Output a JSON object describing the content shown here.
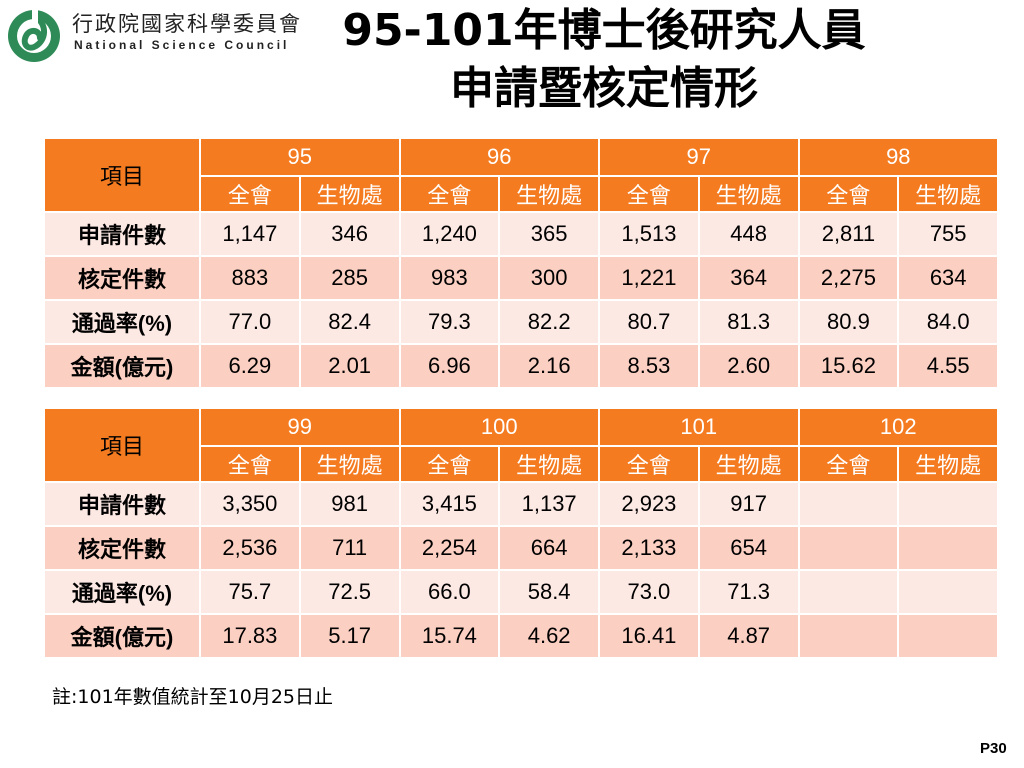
{
  "header": {
    "org_cn": "行政院國家科學委員會",
    "org_en": "National  Science  Council",
    "logo_icon": "nsc-logo-icon",
    "logo_color": "#2e8b57"
  },
  "title": {
    "line1": "95-101年博士後研究人員",
    "line2": "申請暨核定情形"
  },
  "colors": {
    "header_bg": "#f47b20",
    "row_light": "#fde9e4",
    "row_dark": "#fbd0c3"
  },
  "table1": {
    "corner": "項目",
    "years": [
      "95",
      "96",
      "97",
      "98"
    ],
    "subheaders": [
      "全會",
      "生物處",
      "全會",
      "生物處",
      "全會",
      "生物處",
      "全會",
      "生物處"
    ],
    "rows": [
      {
        "label": "申請件數",
        "cells": [
          "1,147",
          "346",
          "1,240",
          "365",
          "1,513",
          "448",
          "2,811",
          "755"
        ]
      },
      {
        "label": "核定件數",
        "cells": [
          "883",
          "285",
          "983",
          "300",
          "1,221",
          "364",
          "2,275",
          "634"
        ]
      },
      {
        "label": "通過率(%)",
        "cells": [
          "77.0",
          "82.4",
          "79.3",
          "82.2",
          "80.7",
          "81.3",
          "80.9",
          "84.0"
        ]
      },
      {
        "label": "金額(億元)",
        "cells": [
          "6.29",
          "2.01",
          "6.96",
          "2.16",
          "8.53",
          "2.60",
          "15.62",
          "4.55"
        ]
      }
    ]
  },
  "table2": {
    "corner": "項目",
    "years": [
      "99",
      "100",
      "101",
      "102"
    ],
    "subheaders": [
      "全會",
      "生物處",
      "全會",
      "生物處",
      "全會",
      "生物處",
      "全會",
      "生物處"
    ],
    "rows": [
      {
        "label": "申請件數",
        "cells": [
          "3,350",
          "981",
          "3,415",
          "1,137",
          "2,923",
          "917",
          "",
          ""
        ]
      },
      {
        "label": "核定件數",
        "cells": [
          "2,536",
          "711",
          "2,254",
          "664",
          "2,133",
          "654",
          "",
          ""
        ]
      },
      {
        "label": "通過率(%)",
        "cells": [
          "75.7",
          "72.5",
          "66.0",
          "58.4",
          "73.0",
          "71.3",
          "",
          ""
        ]
      },
      {
        "label": "金額(億元)",
        "cells": [
          "17.83",
          "5.17",
          "15.74",
          "4.62",
          "16.41",
          "4.87",
          "",
          ""
        ]
      }
    ]
  },
  "footer": {
    "note": "註:101年數值統計至10月25日止",
    "page_number": "P30"
  }
}
